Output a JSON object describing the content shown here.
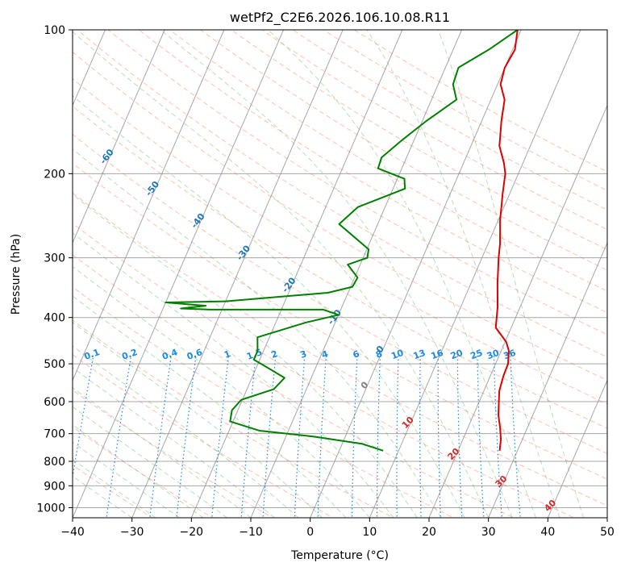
{
  "chart_data": {
    "type": "line",
    "title": "wetPf2_C2E6.2026.106.10.08.R11",
    "xlabel": "Temperature (°C)",
    "ylabel": "Pressure (hPa)",
    "xlim": [
      -40,
      50
    ],
    "ylim": [
      1050,
      100
    ],
    "y_scale": "log",
    "x_ticks": [
      -40,
      -30,
      -20,
      -10,
      0,
      10,
      20,
      30,
      40,
      50
    ],
    "y_ticks": [
      100,
      200,
      300,
      400,
      500,
      600,
      700,
      800,
      900,
      1000
    ],
    "skew": "skew-T log-P diagram",
    "grid": true,
    "series": [
      {
        "color": "#e00000",
        "points": [
          [
            -0.6,
            100
          ],
          [
            0.4,
            110
          ],
          [
            0.0,
            120
          ],
          [
            0.5,
            130
          ],
          [
            2.3,
            140
          ],
          [
            3.3,
            155
          ],
          [
            4.8,
            175
          ],
          [
            6.8,
            190
          ],
          [
            7.8,
            200
          ],
          [
            8.8,
            220
          ],
          [
            10.3,
            250
          ],
          [
            12.0,
            280
          ],
          [
            12.8,
            300
          ],
          [
            14.5,
            340
          ],
          [
            16.2,
            380
          ],
          [
            17.4,
            420
          ],
          [
            20.2,
            450
          ],
          [
            21.3,
            470
          ],
          [
            22.1,
            500
          ],
          [
            22.2,
            530
          ],
          [
            22.6,
            570
          ],
          [
            24.2,
            640
          ],
          [
            25.4,
            680
          ],
          [
            26.4,
            720
          ],
          [
            27.0,
            760
          ]
        ]
      },
      {
        "color": "#008000",
        "points": [
          [
            -0.6,
            100
          ],
          [
            -4.0,
            110
          ],
          [
            -7.8,
            120
          ],
          [
            -7.5,
            130
          ],
          [
            -5.8,
            140
          ],
          [
            -9.3,
            155
          ],
          [
            -12.0,
            170
          ],
          [
            -14.2,
            185
          ],
          [
            -14.0,
            195
          ],
          [
            -8.8,
            205
          ],
          [
            -8.0,
            215
          ],
          [
            -14.6,
            235
          ],
          [
            -16.5,
            255
          ],
          [
            -13.3,
            270
          ],
          [
            -9.7,
            288
          ],
          [
            -9.3,
            300
          ],
          [
            -12.1,
            310
          ],
          [
            -9.5,
            330
          ],
          [
            -9.7,
            345
          ],
          [
            -13.4,
            355
          ],
          [
            -30.0,
            370
          ],
          [
            -40.0,
            372
          ],
          [
            -33.0,
            378
          ],
          [
            -37.0,
            383
          ],
          [
            -32.0,
            385
          ],
          [
            -13.0,
            385
          ],
          [
            -10.0,
            395
          ],
          [
            -15.0,
            410
          ],
          [
            -22.0,
            440
          ],
          [
            -21.0,
            470
          ],
          [
            -21.0,
            490
          ],
          [
            -18.0,
            510
          ],
          [
            -14.5,
            535
          ],
          [
            -15.5,
            565
          ],
          [
            -20.2,
            595
          ],
          [
            -21.0,
            625
          ],
          [
            -20.5,
            660
          ],
          [
            -14.9,
            690
          ],
          [
            -5.3,
            710
          ],
          [
            3.3,
            735
          ],
          [
            7.4,
            760
          ]
        ]
      }
    ],
    "isotherms": [
      -100,
      -90,
      -80,
      -70,
      -60,
      -50,
      -40,
      -30,
      -20,
      -10,
      0
    ],
    "mixing_ratio_labels": [
      "0.1",
      "0.2",
      "0.4",
      "0.6",
      "1",
      "1.5",
      "2",
      "3",
      "4",
      "6",
      "8",
      "10",
      "13",
      "16",
      "20",
      "25",
      "30",
      "36"
    ],
    "mixing_ratios": [
      0.1,
      0.2,
      0.4,
      0.6,
      1,
      1.5,
      2,
      3,
      4,
      6,
      8,
      10,
      13,
      16,
      20,
      25,
      30,
      36
    ],
    "moist_adiabat_labels": [
      0,
      10,
      20,
      30,
      40
    ],
    "colors": {
      "temperature": "#e00000",
      "dewpoint": "#008000",
      "isotherm_label": "#1f77b4",
      "mixing_ratio": "#1e88e5",
      "moist_label_warm": "#d62728",
      "moist_label_zero": "#808080",
      "dry_adiabat": "#ff8c6e",
      "moist_adiabat": "#4caf50"
    }
  }
}
